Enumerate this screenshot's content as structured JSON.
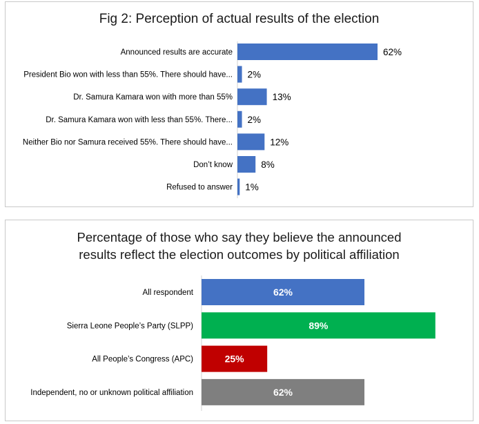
{
  "chart_data": [
    {
      "type": "bar",
      "orientation": "horizontal",
      "title": "Fig 2: Perception of actual results of the election",
      "categories": [
        "Announced results are accurate",
        "President Bio won with less than 55%. There should have...",
        "Dr. Samura Kamara won with more than 55%",
        "Dr. Samura Kamara won with less than 55%. There...",
        "Neither Bio nor Samura received 55%. There should have...",
        "Don’t know",
        "Refused to answer"
      ],
      "values": [
        62,
        2,
        13,
        2,
        12,
        8,
        1
      ],
      "value_labels": [
        "62%",
        "2%",
        "13%",
        "2%",
        "12%",
        "8%",
        "1%"
      ],
      "bar_color": "#4472c4",
      "data_labels": "outside-end",
      "grid": false
    },
    {
      "type": "bar",
      "orientation": "horizontal",
      "title_lines": [
        "Percentage of those who say they believe the announced",
        "results reflect the election outcomes by political affiliation"
      ],
      "categories": [
        "All respondent",
        "Sierra Leone People’s Party (SLPP)",
        "All People’s Congress (APC)",
        "Independent, no or unknown political affiliation"
      ],
      "values": [
        62,
        89,
        25,
        62
      ],
      "value_labels": [
        "62%",
        "89%",
        "25%",
        "62%"
      ],
      "colors": [
        "#4472c4",
        "#00b050",
        "#c00000",
        "#7f7f7f"
      ],
      "data_labels": "center",
      "grid": false
    }
  ]
}
